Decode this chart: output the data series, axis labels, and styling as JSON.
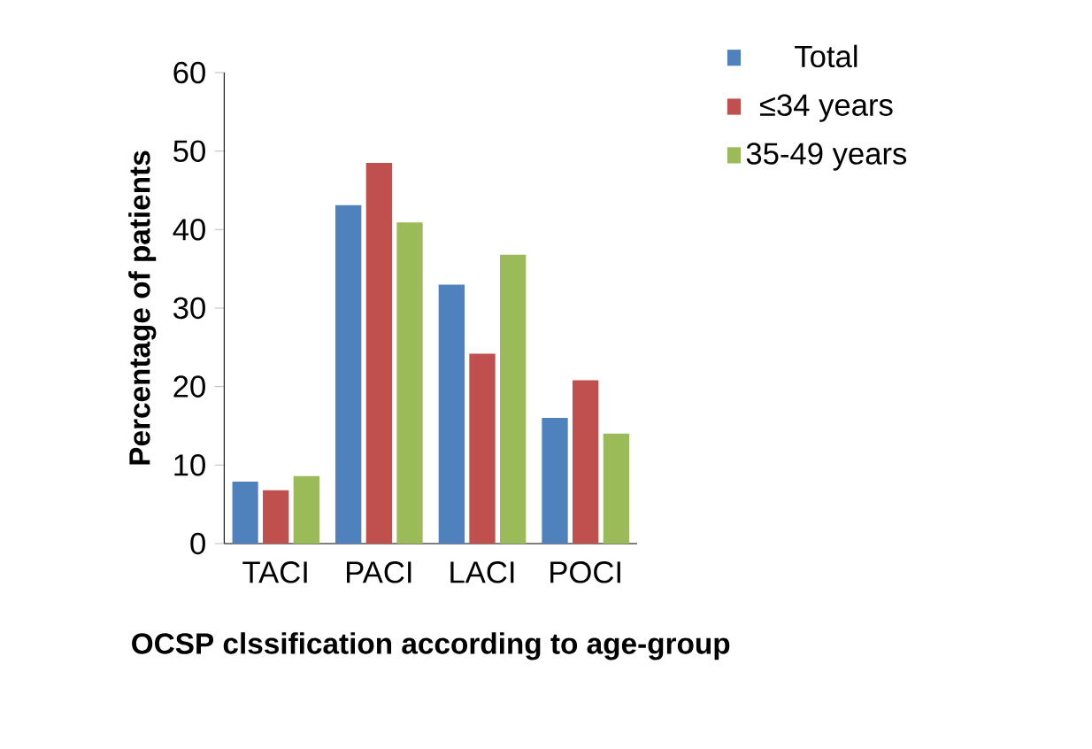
{
  "chart_data": {
    "type": "bar",
    "xlabel": "OCSP clssification according to age-group",
    "ylabel": "Percentage of patients",
    "categories": [
      "TACI",
      "PACI",
      "LACI",
      "POCI"
    ],
    "series": [
      {
        "name": "Total",
        "color": "#4f81bd",
        "values": [
          7.9,
          43.1,
          33,
          16
        ]
      },
      {
        "name": "≤34 years",
        "color": "#c0504d",
        "values": [
          6.8,
          48.5,
          24.2,
          20.8
        ]
      },
      {
        "name": "35-49 years",
        "color": "#9bbb59",
        "values": [
          8.6,
          40.9,
          36.8,
          14
        ]
      }
    ],
    "ylim": [
      0,
      60
    ],
    "yticks": [
      0,
      10,
      20,
      30,
      40,
      50,
      60
    ],
    "grid": false,
    "legend": "top right"
  }
}
